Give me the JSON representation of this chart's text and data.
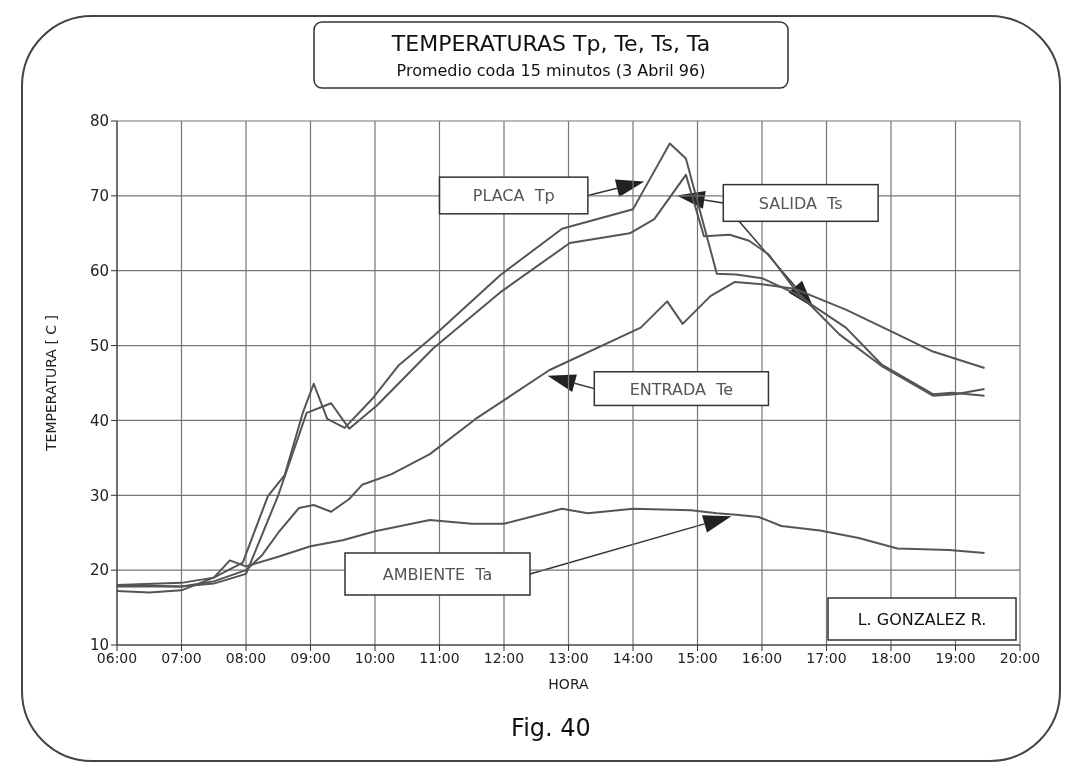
{
  "chart_data": {
    "type": "line",
    "title": "TEMPERATURAS Tp,  Te,  Ts,  Ta",
    "subtitle": "Promedio coda 15 minutos (3 Abril 96)",
    "xlabel": "HORA",
    "ylabel": "TEMPERATURA  [ C ]",
    "xlim": [
      6,
      20
    ],
    "xticks": [
      {
        "value": 6,
        "label": "06:00"
      },
      {
        "value": 7,
        "label": "07:00"
      },
      {
        "value": 8,
        "label": "08:00"
      },
      {
        "value": 9,
        "label": "09:00"
      },
      {
        "value": 10,
        "label": "10:00"
      },
      {
        "value": 11,
        "label": "11:00"
      },
      {
        "value": 12,
        "label": "12:00"
      },
      {
        "value": 13,
        "label": "13:00"
      },
      {
        "value": 14,
        "label": "14:00"
      },
      {
        "value": 15,
        "label": "15:00"
      },
      {
        "value": 16,
        "label": "16:00"
      },
      {
        "value": 17,
        "label": "17:00"
      },
      {
        "value": 18,
        "label": "18:00"
      },
      {
        "value": 19,
        "label": "19:00"
      },
      {
        "value": 20,
        "label": "20:00"
      }
    ],
    "ylim": [
      10,
      80
    ],
    "yticks": [
      10,
      20,
      30,
      40,
      50,
      60,
      70,
      80
    ],
    "grid": true,
    "marker": "none",
    "line_style": "solid",
    "series": [
      {
        "name": "PLACA  Tp",
        "color": "#555555",
        "x": [
          6,
          7,
          7.5,
          7.95,
          8.34,
          8.6,
          8.88,
          9.05,
          9.26,
          9.53,
          9.97,
          10.36,
          10.9,
          11.94,
          12.9,
          14.0,
          14.22,
          14.57,
          14.82,
          15.3,
          15.6,
          16.0,
          16.5,
          17.3,
          17.85,
          18.65,
          18.95,
          19.45
        ],
        "values": [
          18,
          18.3,
          19,
          21,
          29.9,
          32.7,
          41,
          44.9,
          40.2,
          39,
          43,
          47.3,
          51.2,
          59.4,
          65.6,
          68.2,
          71.6,
          77,
          75,
          59.6,
          59.5,
          59,
          57,
          52.4,
          47.5,
          43.5,
          43.7,
          43.3
        ]
      },
      {
        "name": "SALIDA  Ts",
        "color": "#555555",
        "x": [
          6,
          7,
          7.5,
          8.0,
          8.5,
          8.94,
          9.32,
          9.6,
          10.03,
          10.9,
          11.94,
          13.02,
          13.95,
          14.33,
          14.82,
          15.1,
          15.5,
          15.8,
          16.1,
          16.5,
          17.2,
          17.85,
          18.65,
          19.0,
          19.45
        ],
        "values": [
          18,
          17.8,
          18.2,
          19.5,
          30,
          41,
          42.3,
          38.9,
          42,
          49.6,
          57.1,
          63.7,
          65,
          66.9,
          72.8,
          64.6,
          64.8,
          64,
          62.2,
          57.6,
          51.5,
          47.3,
          43.3,
          43.5,
          44.2
        ]
      },
      {
        "name": "ENTRADA  Te",
        "color": "#555555",
        "x": [
          6,
          7,
          7.5,
          8,
          8.25,
          8.5,
          8.82,
          9.05,
          9.32,
          9.6,
          9.8,
          10.25,
          10.85,
          11.56,
          12.7,
          14.12,
          14.53,
          14.77,
          15.2,
          15.58,
          16.0,
          16.5,
          17.3,
          18.1,
          18.65,
          19.45
        ],
        "values": [
          17.8,
          17.8,
          18.5,
          20,
          22,
          25,
          28.3,
          28.7,
          27.8,
          29.5,
          31.4,
          32.8,
          35.5,
          40.2,
          46.7,
          52.4,
          55.9,
          52.9,
          56.6,
          58.5,
          58.2,
          57.6,
          54.8,
          51.5,
          49.2,
          47
        ]
      },
      {
        "name": "AMBIENTE  Ta",
        "color": "#555555",
        "x": [
          6,
          6.5,
          7,
          7.5,
          7.75,
          8,
          8.5,
          9.0,
          9.5,
          10,
          10.85,
          11.5,
          12,
          12.9,
          13.3,
          14,
          14.9,
          15.3,
          15.6,
          15.95,
          16.3,
          16.9,
          17.5,
          18.1,
          18.9,
          19.45
        ],
        "values": [
          17.2,
          17,
          17.3,
          19,
          21.3,
          20.5,
          21.8,
          23.2,
          24,
          25.2,
          26.7,
          26.2,
          26.2,
          28.2,
          27.6,
          28.2,
          28,
          27.6,
          27.4,
          27.1,
          25.9,
          25.3,
          24.3,
          22.9,
          22.7,
          22.3
        ]
      }
    ],
    "annotations": [
      "L. GONZALEZ R.",
      "Fig. 40"
    ]
  }
}
